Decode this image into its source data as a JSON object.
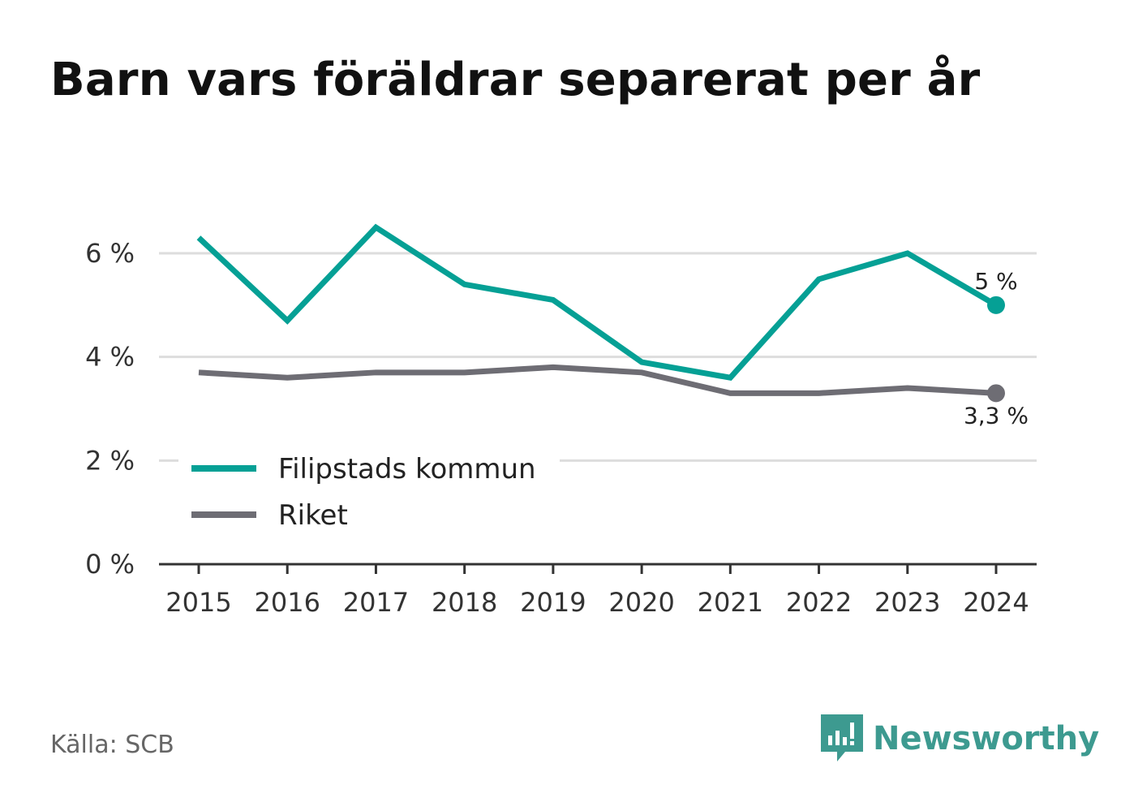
{
  "title": "Barn vars föräldrar separerat per år",
  "source": "Källa: SCB",
  "brand": {
    "name": "Newsworthy",
    "icon": "newsworthy-logo-icon",
    "color": "#3d9a90"
  },
  "chart_data": {
    "type": "line",
    "categories": [
      "2015",
      "2016",
      "2017",
      "2018",
      "2019",
      "2020",
      "2021",
      "2022",
      "2023",
      "2024"
    ],
    "series": [
      {
        "name": "Filipstads kommun",
        "color": "#05a095",
        "values": [
          6.3,
          4.7,
          6.5,
          5.4,
          5.1,
          3.9,
          3.6,
          5.5,
          6.0,
          5.0
        ],
        "end_label": "5 %"
      },
      {
        "name": "Riket",
        "color": "#6e6d74",
        "values": [
          3.7,
          3.6,
          3.7,
          3.7,
          3.8,
          3.7,
          3.3,
          3.3,
          3.4,
          3.3
        ],
        "end_label": "3,3 %"
      }
    ],
    "y_ticks": [
      0,
      2,
      4,
      6
    ],
    "y_tick_labels": [
      "0 %",
      "2 %",
      "4 %",
      "6 %"
    ],
    "ylim": [
      0,
      6
    ],
    "grid": true,
    "legend_position": "bottom-left"
  }
}
